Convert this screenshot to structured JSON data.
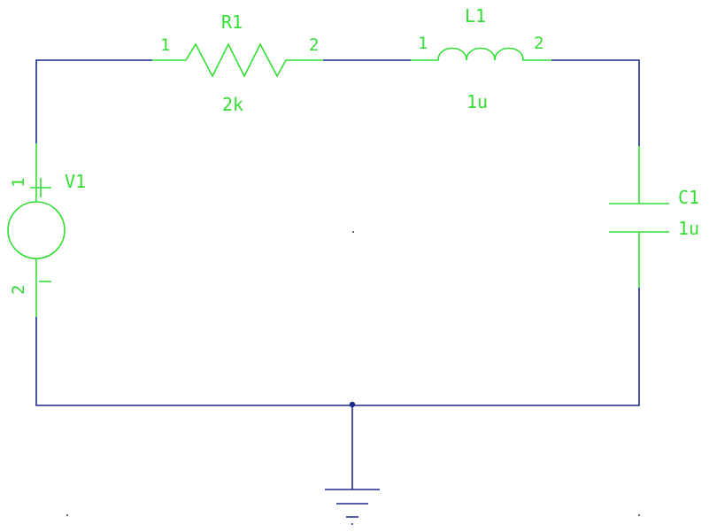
{
  "colors": {
    "wire": "#1c2a8c",
    "component": "#33dd33",
    "background": "#ffffff"
  },
  "components": {
    "r1": {
      "ref": "R1",
      "value": "2k",
      "pin1": "1",
      "pin2": "2"
    },
    "l1": {
      "ref": "L1",
      "value": "1u",
      "pin1": "1",
      "pin2": "2"
    },
    "c1": {
      "ref": "C1",
      "value": "1u"
    },
    "v1": {
      "ref": "V1",
      "pin1": "1",
      "pin2": "2",
      "plus": "+",
      "minus": "−"
    }
  },
  "ground": {
    "icon": "ground-icon"
  }
}
